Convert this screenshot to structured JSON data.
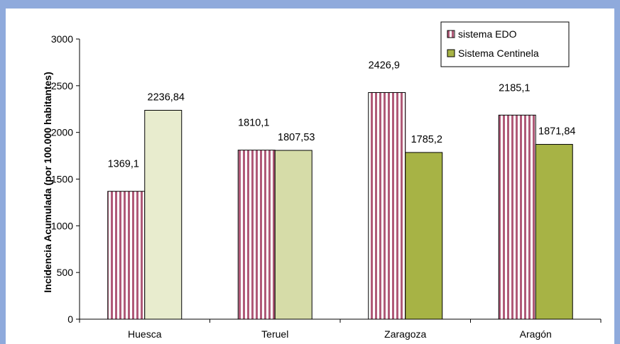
{
  "colors": {
    "frame": "#8faadc",
    "edo_fill": "#ffffff",
    "edo_stripe": "#b05a78",
    "centinela_light": "#e8ecce",
    "centinela_mid": "#d6dca8",
    "centinela_dark": "#a7b345"
  },
  "chart_data": {
    "type": "bar",
    "categories": [
      "Huesca",
      "Teruel",
      "Zaragoza",
      "Aragón"
    ],
    "series": [
      {
        "name": "sistema EDO",
        "values": [
          1369.1,
          1810.1,
          2426.9,
          2185.1
        ],
        "labels": [
          "1369,1",
          "1810,1",
          "2426,9",
          "2185,1"
        ],
        "pattern": "vertical-stripes"
      },
      {
        "name": "Sistema Centinela",
        "values": [
          2236.84,
          1807.53,
          1785.2,
          1871.84
        ],
        "labels": [
          "2236,84",
          "1807,53",
          "1785,2",
          "1871,84"
        ],
        "colors": [
          "#e8ecce",
          "#d6dca8",
          "#a7b345",
          "#a7b345"
        ]
      }
    ],
    "ylabel": "Incidencia Acumulada (por 100.000 habitantes)",
    "xlabel": "",
    "ylim": [
      0,
      3000
    ],
    "yticks": [
      0,
      500,
      1000,
      1500,
      2000,
      2500,
      3000
    ],
    "legend_position": "top-right",
    "grid": false
  }
}
